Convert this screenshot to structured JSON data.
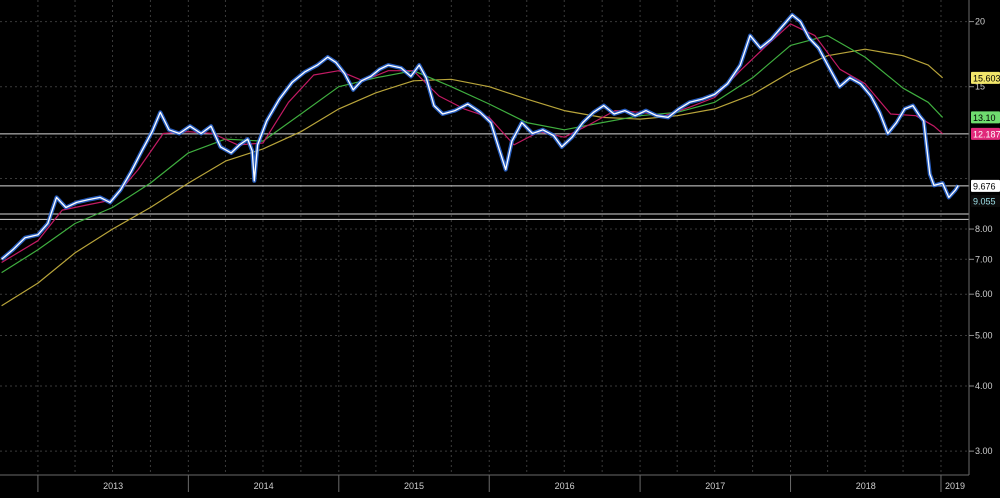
{
  "chart_data": {
    "type": "line",
    "y_scale": "log",
    "ylim": [
      2.7,
      22
    ],
    "xlim": [
      "2012-10-01",
      "2019-03-10"
    ],
    "y_ticks": [
      {
        "value": 20,
        "label": "20"
      },
      {
        "value": 15,
        "label": "15"
      },
      {
        "value": 8,
        "label": "8.00"
      },
      {
        "value": 7,
        "label": "7.00"
      },
      {
        "value": 6,
        "label": "6.00"
      },
      {
        "value": 5,
        "label": "5.00"
      },
      {
        "value": 4,
        "label": "4.00"
      },
      {
        "value": 3,
        "label": "3.00"
      }
    ],
    "y_grid": [
      20,
      15,
      12,
      10,
      8,
      7,
      6,
      5,
      4,
      3
    ],
    "x_ticks": [
      {
        "date": "2013-01-01",
        "label": "2013"
      },
      {
        "date": "2014-01-01",
        "label": "2014"
      },
      {
        "date": "2015-01-01",
        "label": "2015"
      },
      {
        "date": "2016-01-01",
        "label": "2016"
      },
      {
        "date": "2017-01-01",
        "label": "2017"
      },
      {
        "date": "2018-01-01",
        "label": "2018"
      },
      {
        "date": "2019-01-01",
        "label": "2019"
      }
    ],
    "grid": true,
    "horizontal_lines": [
      {
        "value": 8.55,
        "color": "#d8d8d8"
      },
      {
        "value": 8.35,
        "color": "#d8d8d8"
      },
      {
        "value": 12.18,
        "color": "#d8d8d8"
      },
      {
        "value": 9.68,
        "color": "#d8d8d8"
      }
    ],
    "value_flags": [
      {
        "value": 15.6,
        "label": "15.603",
        "bg": "#f2e66b",
        "fg": "#000000"
      },
      {
        "value": 13.1,
        "label": "13.10",
        "bg": "#6fdc6f",
        "fg": "#000000"
      },
      {
        "value": 12.18,
        "label": "12.187",
        "bg": "#e0287a",
        "fg": "#ffffff"
      },
      {
        "value": 9.68,
        "label": "9.676",
        "bg": "#ffffff",
        "fg": "#000000"
      },
      {
        "value": 9.05,
        "label": "9.055",
        "bg": "#0b0b0b",
        "fg": "#9fe0e8"
      }
    ],
    "series": [
      {
        "style": "price",
        "color": "#ffffff",
        "points": [
          [
            "2012-10-05",
            7.0
          ],
          [
            "2012-11-01",
            7.3
          ],
          [
            "2012-12-01",
            7.7
          ],
          [
            "2013-01-01",
            7.8
          ],
          [
            "2013-01-25",
            8.2
          ],
          [
            "2013-02-15",
            9.2
          ],
          [
            "2013-03-10",
            8.8
          ],
          [
            "2013-04-05",
            9.0
          ],
          [
            "2013-05-01",
            9.1
          ],
          [
            "2013-06-01",
            9.2
          ],
          [
            "2013-06-25",
            9.0
          ],
          [
            "2013-07-20",
            9.5
          ],
          [
            "2013-08-15",
            10.3
          ],
          [
            "2013-09-10",
            11.3
          ],
          [
            "2013-10-05",
            12.3
          ],
          [
            "2013-10-25",
            13.4
          ],
          [
            "2013-11-15",
            12.4
          ],
          [
            "2013-12-10",
            12.2
          ],
          [
            "2014-01-05",
            12.6
          ],
          [
            "2014-02-01",
            12.2
          ],
          [
            "2014-02-25",
            12.6
          ],
          [
            "2014-03-20",
            11.5
          ],
          [
            "2014-04-15",
            11.2
          ],
          [
            "2014-05-05",
            11.6
          ],
          [
            "2014-05-25",
            11.9
          ],
          [
            "2014-06-05",
            11.3
          ],
          [
            "2014-06-10",
            9.9
          ],
          [
            "2014-06-18",
            11.6
          ],
          [
            "2014-07-10",
            12.9
          ],
          [
            "2014-08-10",
            14.2
          ],
          [
            "2014-09-10",
            15.3
          ],
          [
            "2014-10-10",
            16.0
          ],
          [
            "2014-11-10",
            16.5
          ],
          [
            "2014-12-05",
            17.1
          ],
          [
            "2014-12-25",
            16.7
          ],
          [
            "2015-01-15",
            15.9
          ],
          [
            "2015-02-05",
            14.8
          ],
          [
            "2015-02-25",
            15.4
          ],
          [
            "2015-03-20",
            15.7
          ],
          [
            "2015-04-10",
            16.2
          ],
          [
            "2015-05-01",
            16.5
          ],
          [
            "2015-06-01",
            16.3
          ],
          [
            "2015-06-25",
            15.7
          ],
          [
            "2015-07-15",
            16.5
          ],
          [
            "2015-08-01",
            15.6
          ],
          [
            "2015-08-20",
            13.8
          ],
          [
            "2015-09-10",
            13.3
          ],
          [
            "2015-10-10",
            13.5
          ],
          [
            "2015-11-10",
            13.9
          ],
          [
            "2015-12-10",
            13.4
          ],
          [
            "2016-01-05",
            12.8
          ],
          [
            "2016-01-25",
            11.4
          ],
          [
            "2016-02-10",
            10.4
          ],
          [
            "2016-02-25",
            11.8
          ],
          [
            "2016-03-20",
            12.8
          ],
          [
            "2016-04-15",
            12.2
          ],
          [
            "2016-05-10",
            12.4
          ],
          [
            "2016-06-05",
            12.1
          ],
          [
            "2016-06-25",
            11.5
          ],
          [
            "2016-07-20",
            12.0
          ],
          [
            "2016-08-15",
            12.8
          ],
          [
            "2016-09-10",
            13.4
          ],
          [
            "2016-10-05",
            13.8
          ],
          [
            "2016-10-30",
            13.3
          ],
          [
            "2016-11-25",
            13.5
          ],
          [
            "2016-12-20",
            13.2
          ],
          [
            "2017-01-15",
            13.5
          ],
          [
            "2017-02-10",
            13.2
          ],
          [
            "2017-03-10",
            13.1
          ],
          [
            "2017-04-05",
            13.6
          ],
          [
            "2017-05-01",
            14.0
          ],
          [
            "2017-06-01",
            14.2
          ],
          [
            "2017-07-01",
            14.5
          ],
          [
            "2017-08-01",
            15.2
          ],
          [
            "2017-09-01",
            16.5
          ],
          [
            "2017-09-25",
            18.8
          ],
          [
            "2017-10-20",
            17.8
          ],
          [
            "2017-11-15",
            18.5
          ],
          [
            "2017-12-10",
            19.5
          ],
          [
            "2018-01-05",
            20.6
          ],
          [
            "2018-01-25",
            20.0
          ],
          [
            "2018-02-15",
            18.6
          ],
          [
            "2018-03-10",
            17.8
          ],
          [
            "2018-04-05",
            16.3
          ],
          [
            "2018-04-30",
            15.0
          ],
          [
            "2018-05-25",
            15.6
          ],
          [
            "2018-06-20",
            15.2
          ],
          [
            "2018-07-15",
            14.4
          ],
          [
            "2018-08-05",
            13.4
          ],
          [
            "2018-08-25",
            12.2
          ],
          [
            "2018-09-15",
            12.8
          ],
          [
            "2018-10-05",
            13.6
          ],
          [
            "2018-10-25",
            13.8
          ],
          [
            "2018-11-10",
            13.2
          ],
          [
            "2018-11-20",
            12.9
          ],
          [
            "2018-12-05",
            10.2
          ],
          [
            "2018-12-15",
            9.7
          ],
          [
            "2019-01-05",
            9.8
          ],
          [
            "2019-01-20",
            9.2
          ],
          [
            "2019-02-05",
            9.5
          ],
          [
            "2019-02-12",
            9.7
          ]
        ]
      },
      {
        "style": "ma",
        "color": "#c21a63",
        "points": [
          [
            "2012-10-05",
            6.9
          ],
          [
            "2013-01-01",
            7.6
          ],
          [
            "2013-03-01",
            8.7
          ],
          [
            "2013-05-01",
            8.9
          ],
          [
            "2013-07-01",
            9.1
          ],
          [
            "2013-09-01",
            10.4
          ],
          [
            "2013-11-01",
            12.2
          ],
          [
            "2014-01-01",
            12.3
          ],
          [
            "2014-03-01",
            12.2
          ],
          [
            "2014-05-01",
            11.6
          ],
          [
            "2014-07-01",
            11.7
          ],
          [
            "2014-09-01",
            14.0
          ],
          [
            "2014-11-01",
            15.8
          ],
          [
            "2015-01-01",
            16.1
          ],
          [
            "2015-03-01",
            15.4
          ],
          [
            "2015-05-01",
            16.1
          ],
          [
            "2015-07-01",
            16.1
          ],
          [
            "2015-09-01",
            14.4
          ],
          [
            "2015-11-01",
            13.6
          ],
          [
            "2016-01-01",
            13.1
          ],
          [
            "2016-03-01",
            11.6
          ],
          [
            "2016-05-01",
            12.3
          ],
          [
            "2016-07-01",
            12.0
          ],
          [
            "2016-09-01",
            12.7
          ],
          [
            "2016-11-01",
            13.5
          ],
          [
            "2017-01-01",
            13.4
          ],
          [
            "2017-03-01",
            13.2
          ],
          [
            "2017-05-01",
            13.7
          ],
          [
            "2017-07-01",
            14.3
          ],
          [
            "2017-09-01",
            16.1
          ],
          [
            "2017-11-01",
            17.9
          ],
          [
            "2018-01-01",
            19.8
          ],
          [
            "2018-03-01",
            18.8
          ],
          [
            "2018-05-01",
            16.2
          ],
          [
            "2018-07-01",
            15.2
          ],
          [
            "2018-09-01",
            13.3
          ],
          [
            "2018-11-01",
            13.2
          ],
          [
            "2018-12-15",
            12.6
          ],
          [
            "2019-01-05",
            12.19
          ]
        ]
      },
      {
        "style": "ma",
        "color": "#3fae3f",
        "points": [
          [
            "2012-10-05",
            6.6
          ],
          [
            "2013-01-01",
            7.3
          ],
          [
            "2013-04-01",
            8.2
          ],
          [
            "2013-07-01",
            8.8
          ],
          [
            "2013-10-01",
            9.8
          ],
          [
            "2014-01-01",
            11.2
          ],
          [
            "2014-04-01",
            11.9
          ],
          [
            "2014-07-01",
            11.8
          ],
          [
            "2014-10-01",
            13.3
          ],
          [
            "2015-01-01",
            15.0
          ],
          [
            "2015-04-01",
            15.6
          ],
          [
            "2015-07-01",
            16.1
          ],
          [
            "2015-10-01",
            15.0
          ],
          [
            "2016-01-01",
            13.9
          ],
          [
            "2016-04-01",
            12.8
          ],
          [
            "2016-07-01",
            12.4
          ],
          [
            "2016-10-01",
            12.8
          ],
          [
            "2017-01-01",
            13.2
          ],
          [
            "2017-04-01",
            13.4
          ],
          [
            "2017-07-01",
            14.0
          ],
          [
            "2017-10-01",
            15.6
          ],
          [
            "2018-01-01",
            18.0
          ],
          [
            "2018-04-01",
            18.8
          ],
          [
            "2018-07-01",
            17.1
          ],
          [
            "2018-10-01",
            14.9
          ],
          [
            "2018-12-01",
            14.0
          ],
          [
            "2019-01-05",
            13.1
          ]
        ]
      },
      {
        "style": "ma",
        "color": "#b8a43a",
        "points": [
          [
            "2012-10-05",
            5.7
          ],
          [
            "2013-01-01",
            6.3
          ],
          [
            "2013-04-01",
            7.2
          ],
          [
            "2013-07-01",
            8.0
          ],
          [
            "2013-10-01",
            8.8
          ],
          [
            "2014-01-01",
            9.8
          ],
          [
            "2014-04-01",
            10.8
          ],
          [
            "2014-07-01",
            11.4
          ],
          [
            "2014-10-01",
            12.3
          ],
          [
            "2015-01-01",
            13.6
          ],
          [
            "2015-04-01",
            14.6
          ],
          [
            "2015-07-01",
            15.4
          ],
          [
            "2015-10-01",
            15.5
          ],
          [
            "2016-01-01",
            15.0
          ],
          [
            "2016-04-01",
            14.2
          ],
          [
            "2016-07-01",
            13.5
          ],
          [
            "2016-10-01",
            13.1
          ],
          [
            "2017-01-01",
            13.0
          ],
          [
            "2017-04-01",
            13.2
          ],
          [
            "2017-07-01",
            13.6
          ],
          [
            "2017-10-01",
            14.5
          ],
          [
            "2018-01-01",
            16.0
          ],
          [
            "2018-04-01",
            17.2
          ],
          [
            "2018-07-01",
            17.7
          ],
          [
            "2018-10-01",
            17.2
          ],
          [
            "2018-12-01",
            16.5
          ],
          [
            "2019-01-05",
            15.6
          ]
        ]
      }
    ]
  }
}
